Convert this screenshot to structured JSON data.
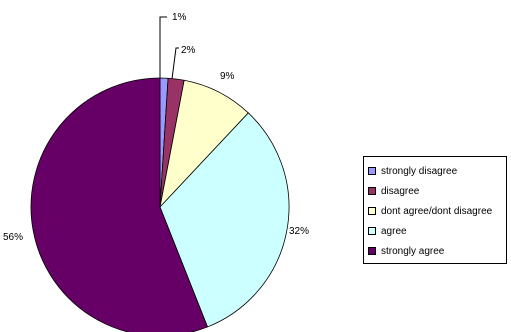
{
  "chart_data": {
    "type": "pie",
    "categories": [
      "strongly disagree",
      "disagree",
      "dont agree/dont disagree",
      "agree",
      "strongly agree"
    ],
    "values": [
      1,
      2,
      9,
      32,
      56
    ],
    "labels": [
      "1%",
      "2%",
      "9%",
      "32%",
      "56%"
    ],
    "colors": [
      "#9999FF",
      "#993366",
      "#FFFFCC",
      "#CCFFFF",
      "#660066"
    ],
    "legend_position": "right"
  }
}
